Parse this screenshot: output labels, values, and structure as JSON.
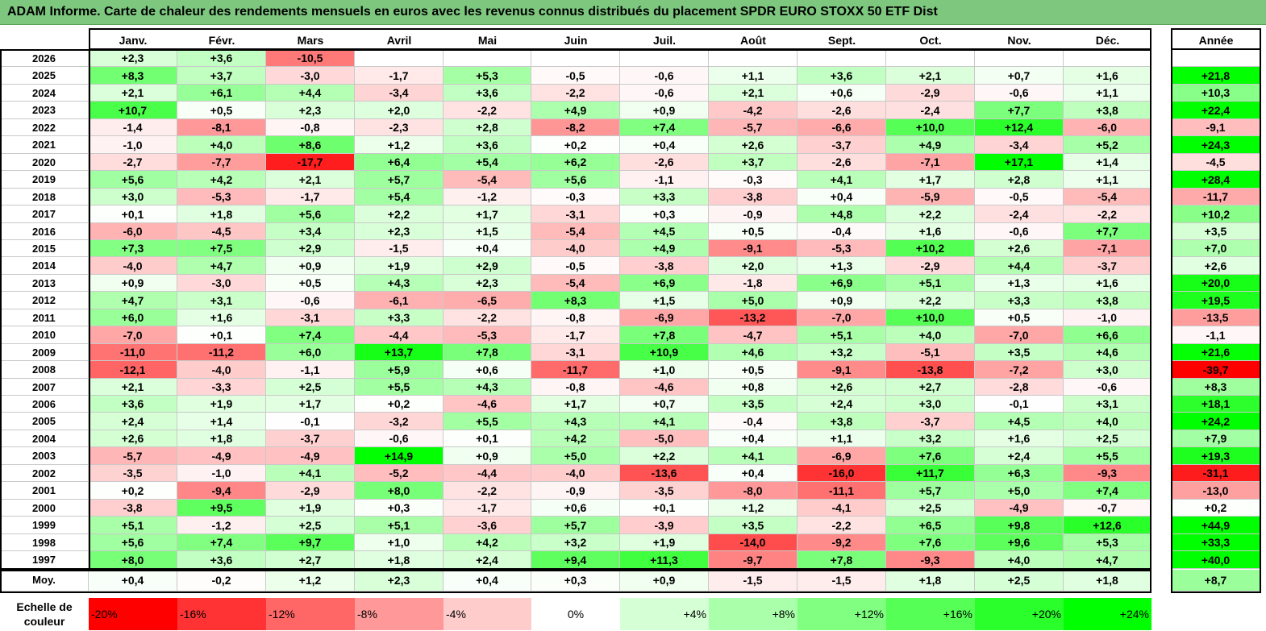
{
  "title": "ADAM Informe. Carte de chaleur des rendements mensuels en euros avec les revenus connus distribués du placement SPDR EURO STOXX 50 ETF Dist",
  "chart_data": {
    "type": "heatmap",
    "title": "ADAM Informe. Carte de chaleur des rendements mensuels en euros avec les revenus connus distribués du placement SPDR EURO STOXX 50 ETF Dist",
    "months": [
      "Janv.",
      "Févr.",
      "Mars",
      "Avril",
      "Mai",
      "Juin",
      "Juil.",
      "Août",
      "Sept.",
      "Oct.",
      "Nov.",
      "Déc."
    ],
    "annual_header": "Année",
    "rows": [
      {
        "year": "2026",
        "values": [
          "+2,3",
          "+3,6",
          "-10,5",
          "",
          "",
          "",
          "",
          "",
          "",
          "",
          "",
          ""
        ],
        "annual": ""
      },
      {
        "year": "2025",
        "values": [
          "+8,3",
          "+3,7",
          "-3,0",
          "-1,7",
          "+5,3",
          "-0,5",
          "-0,6",
          "+1,1",
          "+3,6",
          "+2,1",
          "+0,7",
          "+1,6"
        ],
        "annual": "+21,8"
      },
      {
        "year": "2024",
        "values": [
          "+2,1",
          "+6,1",
          "+4,4",
          "-3,4",
          "+3,6",
          "-2,2",
          "-0,6",
          "+2,1",
          "+0,6",
          "-2,9",
          "-0,6",
          "+1,1"
        ],
        "annual": "+10,3"
      },
      {
        "year": "2023",
        "values": [
          "+10,7",
          "+0,5",
          "+2,3",
          "+2,0",
          "-2,2",
          "+4,9",
          "+0,9",
          "-4,2",
          "-2,6",
          "-2,4",
          "+7,7",
          "+3,8"
        ],
        "annual": "+22,4"
      },
      {
        "year": "2022",
        "values": [
          "-1,4",
          "-8,1",
          "-0,8",
          "-2,3",
          "+2,8",
          "-8,2",
          "+7,4",
          "-5,7",
          "-6,6",
          "+10,0",
          "+12,4",
          "-6,0"
        ],
        "annual": "-9,1"
      },
      {
        "year": "2021",
        "values": [
          "-1,0",
          "+4,0",
          "+8,6",
          "+1,2",
          "+3,6",
          "+0,2",
          "+0,4",
          "+2,6",
          "-3,7",
          "+4,9",
          "-3,4",
          "+5,2"
        ],
        "annual": "+24,3"
      },
      {
        "year": "2020",
        "values": [
          "-2,7",
          "-7,7",
          "-17,7",
          "+6,4",
          "+5,4",
          "+6,2",
          "-2,6",
          "+3,7",
          "-2,6",
          "-7,1",
          "+17,1",
          "+1,4"
        ],
        "annual": "-4,5"
      },
      {
        "year": "2019",
        "values": [
          "+5,6",
          "+4,2",
          "+2,1",
          "+5,7",
          "-5,4",
          "+5,6",
          "-1,1",
          "-0,3",
          "+4,1",
          "+1,7",
          "+2,8",
          "+1,1"
        ],
        "annual": "+28,4"
      },
      {
        "year": "2018",
        "values": [
          "+3,0",
          "-5,3",
          "-1,7",
          "+5,4",
          "-1,2",
          "-0,3",
          "+3,3",
          "-3,8",
          "+0,4",
          "-5,9",
          "-0,5",
          "-5,4"
        ],
        "annual": "-11,7"
      },
      {
        "year": "2017",
        "values": [
          "+0,1",
          "+1,8",
          "+5,6",
          "+2,2",
          "+1,7",
          "-3,1",
          "+0,3",
          "-0,9",
          "+4,8",
          "+2,2",
          "-2,4",
          "-2,2"
        ],
        "annual": "+10,2"
      },
      {
        "year": "2016",
        "values": [
          "-6,0",
          "-4,5",
          "+3,4",
          "+2,3",
          "+1,5",
          "-5,4",
          "+4,5",
          "+0,5",
          "-0,4",
          "+1,6",
          "-0,6",
          "+7,7"
        ],
        "annual": "+3,5"
      },
      {
        "year": "2015",
        "values": [
          "+7,3",
          "+7,5",
          "+2,9",
          "-1,5",
          "+0,4",
          "-4,0",
          "+4,9",
          "-9,1",
          "-5,3",
          "+10,2",
          "+2,6",
          "-7,1"
        ],
        "annual": "+7,0"
      },
      {
        "year": "2014",
        "values": [
          "-4,0",
          "+4,7",
          "+0,9",
          "+1,9",
          "+2,9",
          "-0,5",
          "-3,8",
          "+2,0",
          "+1,3",
          "-2,9",
          "+4,4",
          "-3,7"
        ],
        "annual": "+2,6"
      },
      {
        "year": "2013",
        "values": [
          "+0,9",
          "-3,0",
          "+0,5",
          "+4,3",
          "+2,3",
          "-5,4",
          "+6,9",
          "-1,8",
          "+6,9",
          "+5,1",
          "+1,3",
          "+1,6"
        ],
        "annual": "+20,0"
      },
      {
        "year": "2012",
        "values": [
          "+4,7",
          "+3,1",
          "-0,6",
          "-6,1",
          "-6,5",
          "+8,3",
          "+1,5",
          "+5,0",
          "+0,9",
          "+2,2",
          "+3,3",
          "+3,8"
        ],
        "annual": "+19,5"
      },
      {
        "year": "2011",
        "values": [
          "+6,0",
          "+1,6",
          "-3,1",
          "+3,3",
          "-2,2",
          "-0,8",
          "-6,9",
          "-13,2",
          "-7,0",
          "+10,0",
          "+0,5",
          "-1,0"
        ],
        "annual": "-13,5"
      },
      {
        "year": "2010",
        "values": [
          "-7,0",
          "+0,1",
          "+7,4",
          "-4,4",
          "-5,3",
          "-1,7",
          "+7,8",
          "-4,7",
          "+5,1",
          "+4,0",
          "-7,0",
          "+6,6"
        ],
        "annual": "-1,1"
      },
      {
        "year": "2009",
        "values": [
          "-11,0",
          "-11,2",
          "+6,0",
          "+13,7",
          "+7,8",
          "-3,1",
          "+10,9",
          "+4,6",
          "+3,2",
          "-5,1",
          "+3,5",
          "+4,6"
        ],
        "annual": "+21,6"
      },
      {
        "year": "2008",
        "values": [
          "-12,1",
          "-4,0",
          "-1,1",
          "+5,9",
          "+0,6",
          "-11,7",
          "+1,0",
          "+0,5",
          "-9,1",
          "-13,8",
          "-7,2",
          "+3,0"
        ],
        "annual": "-39,7"
      },
      {
        "year": "2007",
        "values": [
          "+2,1",
          "-3,3",
          "+2,5",
          "+5,5",
          "+4,3",
          "-0,8",
          "-4,6",
          "+0,8",
          "+2,6",
          "+2,7",
          "-2,8",
          "-0,6"
        ],
        "annual": "+8,3"
      },
      {
        "year": "2006",
        "values": [
          "+3,6",
          "+1,9",
          "+1,7",
          "+0,2",
          "-4,6",
          "+1,7",
          "+0,7",
          "+3,5",
          "+2,4",
          "+3,0",
          "-0,1",
          "+3,1"
        ],
        "annual": "+18,1"
      },
      {
        "year": "2005",
        "values": [
          "+2,4",
          "+1,4",
          "-0,1",
          "-3,2",
          "+5,5",
          "+4,3",
          "+4,1",
          "-0,4",
          "+3,8",
          "-3,7",
          "+4,5",
          "+4,0"
        ],
        "annual": "+24,2"
      },
      {
        "year": "2004",
        "values": [
          "+2,6",
          "+1,8",
          "-3,7",
          "-0,6",
          "+0,1",
          "+4,2",
          "-5,0",
          "+0,4",
          "+1,1",
          "+3,2",
          "+1,6",
          "+2,5"
        ],
        "annual": "+7,9"
      },
      {
        "year": "2003",
        "values": [
          "-5,7",
          "-4,9",
          "-4,9",
          "+14,9",
          "+0,9",
          "+5,0",
          "+2,2",
          "+4,1",
          "-6,9",
          "+7,6",
          "+2,4",
          "+5,5"
        ],
        "annual": "+19,3"
      },
      {
        "year": "2002",
        "values": [
          "-3,5",
          "-1,0",
          "+4,1",
          "-5,2",
          "-4,4",
          "-4,0",
          "-13,6",
          "+0,4",
          "-16,0",
          "+11,7",
          "+6,3",
          "-9,3"
        ],
        "annual": "-31,1"
      },
      {
        "year": "2001",
        "values": [
          "+0,2",
          "-9,4",
          "-2,9",
          "+8,0",
          "-2,2",
          "-0,9",
          "-3,5",
          "-8,0",
          "-11,1",
          "+5,7",
          "+5,0",
          "+7,4"
        ],
        "annual": "-13,0"
      },
      {
        "year": "2000",
        "values": [
          "-3,8",
          "+9,5",
          "+1,9",
          "+0,3",
          "-1,7",
          "+0,6",
          "+0,1",
          "+1,2",
          "-4,1",
          "+2,5",
          "-4,9",
          "-0,7"
        ],
        "annual": "+0,2"
      },
      {
        "year": "1999",
        "values": [
          "+5,1",
          "-1,2",
          "+2,5",
          "+5,1",
          "-3,6",
          "+5,7",
          "-3,9",
          "+3,5",
          "-2,2",
          "+6,5",
          "+9,8",
          "+12,6"
        ],
        "annual": "+44,9"
      },
      {
        "year": "1998",
        "values": [
          "+5,6",
          "+7,4",
          "+9,7",
          "+1,0",
          "+4,2",
          "+3,2",
          "+1,9",
          "-14,0",
          "-9,2",
          "+7,6",
          "+9,6",
          "+5,3"
        ],
        "annual": "+33,3"
      },
      {
        "year": "1997",
        "values": [
          "+8,0",
          "+3,6",
          "+2,7",
          "+1,8",
          "+2,4",
          "+9,4",
          "+11,3",
          "-9,7",
          "+7,8",
          "-9,3",
          "+4,0",
          "+4,7"
        ],
        "annual": "+40,0"
      }
    ],
    "average": {
      "label": "Moy.",
      "values": [
        "+0,4",
        "-0,2",
        "+1,2",
        "+2,3",
        "+0,4",
        "+0,3",
        "+0,9",
        "-1,5",
        "-1,5",
        "+1,8",
        "+2,5",
        "+1,8"
      ],
      "annual": "+8,7"
    },
    "color_scale": {
      "label_line1": "Echelle de",
      "label_line2": "couleur",
      "stops": [
        {
          "label": "-20%",
          "value": -20
        },
        {
          "label": "-16%",
          "value": -16
        },
        {
          "label": "-12%",
          "value": -12
        },
        {
          "label": "-8%",
          "value": -8
        },
        {
          "label": "-4%",
          "value": -4
        },
        {
          "label": "0%",
          "value": 0
        },
        {
          "label": "+4%",
          "value": 4
        },
        {
          "label": "+8%",
          "value": 8
        },
        {
          "label": "+12%",
          "value": 12
        },
        {
          "label": "+16%",
          "value": 16
        },
        {
          "label": "+20%",
          "value": 20
        },
        {
          "label": "+24%",
          "value": 24
        }
      ]
    },
    "colors": {
      "negative_max": "#ff0000",
      "positive_max": "#00ff00",
      "neutral": "#ffffff",
      "title_bar": "#7dc77f"
    }
  }
}
